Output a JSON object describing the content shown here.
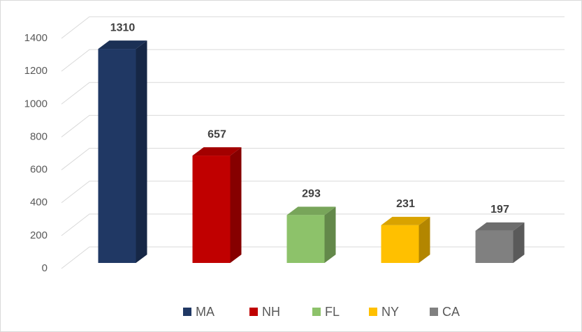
{
  "chart_data": {
    "type": "bar3d",
    "categories": [
      "MA",
      "NH",
      "FL",
      "NY",
      "CA"
    ],
    "values": [
      1310,
      657,
      293,
      231,
      197
    ],
    "colors": [
      "#203864",
      "#c00000",
      "#8dc26a",
      "#ffc000",
      "#808080"
    ],
    "ylim": [
      0,
      1400
    ],
    "yticks": [
      0,
      200,
      400,
      600,
      800,
      1000,
      1200,
      1400
    ],
    "grid": true,
    "legend": "bottom"
  }
}
